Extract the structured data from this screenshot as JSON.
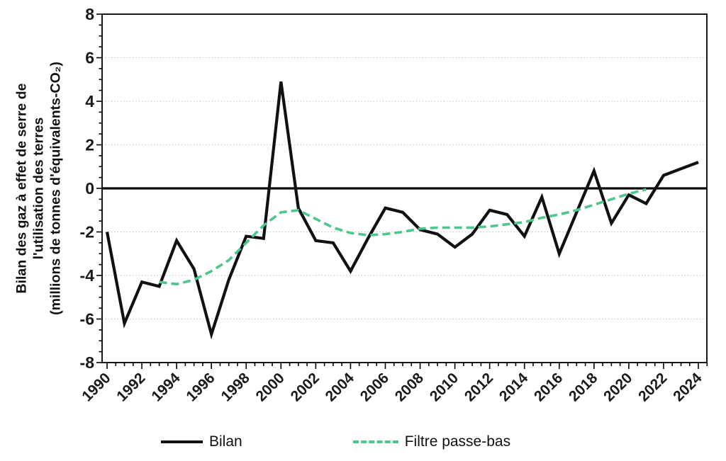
{
  "figure": {
    "y_axis_title_lines": [
      "Bilan des gaz à effet de serre de",
      "l'utilisation des terres",
      "(millions de tonnes d'équivalents-CO₂)"
    ],
    "legend": [
      {
        "label": "Bilan",
        "style": "solid",
        "color": "#111111"
      },
      {
        "label": "Filtre passe-bas",
        "style": "dashed",
        "color": "#4ec68c"
      }
    ]
  },
  "chart_data": {
    "type": "line",
    "title": "",
    "xlabel": "",
    "ylabel": "Bilan des gaz à effet de serre de l'utilisation des terres (millions de tonnes d'équivalents-CO₂)",
    "xlim": [
      1989.7,
      2024.5
    ],
    "ylim": [
      -8,
      8
    ],
    "zero_line": true,
    "gridline_style": "dotted",
    "gridline_values": [
      -6,
      -4,
      -2,
      2,
      4,
      6
    ],
    "y_axis": {
      "major_ticks": [
        8,
        6,
        4,
        2,
        0,
        -2,
        -4,
        -6,
        -8
      ],
      "minor_step": 0.5
    },
    "x_axis": {
      "major_ticks": [
        1990,
        1992,
        1994,
        1996,
        1998,
        2000,
        2002,
        2004,
        2006,
        2008,
        2010,
        2012,
        2014,
        2016,
        2018,
        2020,
        2022,
        2024
      ],
      "minor_step": 0.5
    },
    "legend_position": "bottom",
    "series": [
      {
        "name": "Bilan",
        "color": "#111111",
        "style": "solid",
        "x": [
          1990,
          1991,
          1992,
          1993,
          1994,
          1995,
          1996,
          1997,
          1998,
          1999,
          2000,
          2001,
          2002,
          2003,
          2004,
          2005,
          2006,
          2007,
          2008,
          2009,
          2010,
          2011,
          2012,
          2013,
          2014,
          2015,
          2016,
          2017,
          2018,
          2019,
          2020,
          2021,
          2022,
          2023,
          2024
        ],
        "values": [
          -2.0,
          -6.2,
          -4.3,
          -4.5,
          -2.4,
          -3.7,
          -6.7,
          -4.2,
          -2.2,
          -2.3,
          4.9,
          -0.9,
          -2.4,
          -2.5,
          -3.8,
          -2.3,
          -0.9,
          -1.1,
          -1.9,
          -2.1,
          -2.7,
          -2.1,
          -1.0,
          -1.2,
          -2.2,
          -0.4,
          -3.0,
          -1.1,
          0.8,
          -1.6,
          -0.3,
          -0.7,
          0.6,
          0.9,
          1.2
        ]
      },
      {
        "name": "Filtre passe-bas",
        "color": "#4ec68c",
        "style": "dashed",
        "x": [
          1993,
          1994,
          1995,
          1996,
          1997,
          1998,
          1999,
          2000,
          2001,
          2002,
          2003,
          2004,
          2005,
          2006,
          2007,
          2008,
          2009,
          2010,
          2011,
          2012,
          2013,
          2014,
          2015,
          2016,
          2017,
          2018,
          2019,
          2020,
          2021
        ],
        "values": [
          -4.3,
          -4.4,
          -4.2,
          -3.8,
          -3.3,
          -2.5,
          -1.7,
          -1.1,
          -1.0,
          -1.4,
          -1.8,
          -2.05,
          -2.15,
          -2.1,
          -2.0,
          -1.85,
          -1.8,
          -1.8,
          -1.8,
          -1.75,
          -1.65,
          -1.55,
          -1.35,
          -1.2,
          -1.0,
          -0.75,
          -0.5,
          -0.25,
          -0.05
        ]
      }
    ]
  }
}
